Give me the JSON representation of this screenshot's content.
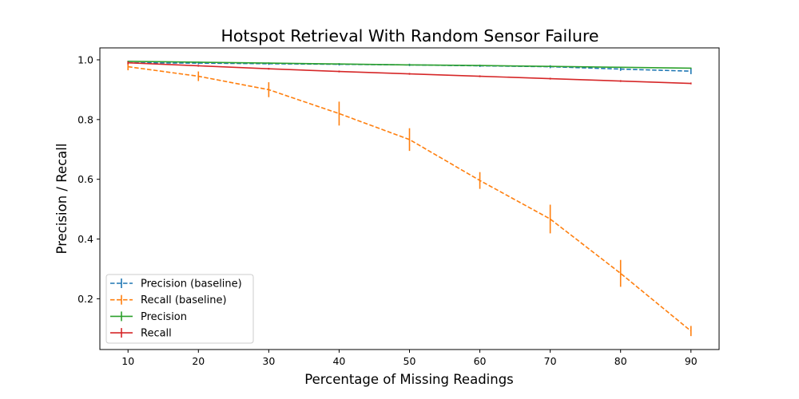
{
  "chart_data": {
    "type": "line",
    "title": "Hotspot Retrieval With Random Sensor Failure",
    "xlabel": "Percentage of Missing Readings",
    "ylabel": "Precision / Recall",
    "x": [
      10,
      20,
      30,
      40,
      50,
      60,
      70,
      80,
      90
    ],
    "xlim": [
      6,
      94
    ],
    "ylim": [
      0.03,
      1.04
    ],
    "xticks": [
      10,
      20,
      30,
      40,
      50,
      60,
      70,
      80,
      90
    ],
    "yticks": [
      0.2,
      0.4,
      0.6,
      0.8,
      1.0
    ],
    "ytick_labels": [
      "0.2",
      "0.4",
      "0.6",
      "0.8",
      "1.0"
    ],
    "grid": false,
    "legend_position": "lower-left",
    "series": [
      {
        "name": "Precision (baseline)",
        "color": "#1f77b4",
        "linestyle": "dashed",
        "values": [
          0.99,
          0.989,
          0.987,
          0.985,
          0.983,
          0.98,
          0.977,
          0.969,
          0.962
        ],
        "errors": [
          0.004,
          0.004,
          0.004,
          0.004,
          0.004,
          0.004,
          0.005,
          0.006,
          0.01
        ]
      },
      {
        "name": "Recall (baseline)",
        "color": "#ff7f0e",
        "linestyle": "dashed",
        "values": [
          0.977,
          0.945,
          0.9,
          0.82,
          0.733,
          0.596,
          0.467,
          0.285,
          0.092
        ],
        "errors": [
          0.012,
          0.016,
          0.025,
          0.04,
          0.038,
          0.028,
          0.048,
          0.045,
          0.017
        ]
      },
      {
        "name": "Precision",
        "color": "#2ca02c",
        "linestyle": "solid",
        "values": [
          0.995,
          0.992,
          0.989,
          0.986,
          0.983,
          0.981,
          0.978,
          0.975,
          0.972
        ],
        "errors": [
          0.002,
          0.002,
          0.002,
          0.002,
          0.002,
          0.002,
          0.002,
          0.002,
          0.002
        ]
      },
      {
        "name": "Recall",
        "color": "#d62728",
        "linestyle": "solid",
        "values": [
          0.99,
          0.98,
          0.97,
          0.961,
          0.953,
          0.945,
          0.937,
          0.929,
          0.921
        ],
        "errors": [
          0.005,
          0.003,
          0.003,
          0.003,
          0.003,
          0.003,
          0.003,
          0.003,
          0.003
        ]
      }
    ]
  }
}
